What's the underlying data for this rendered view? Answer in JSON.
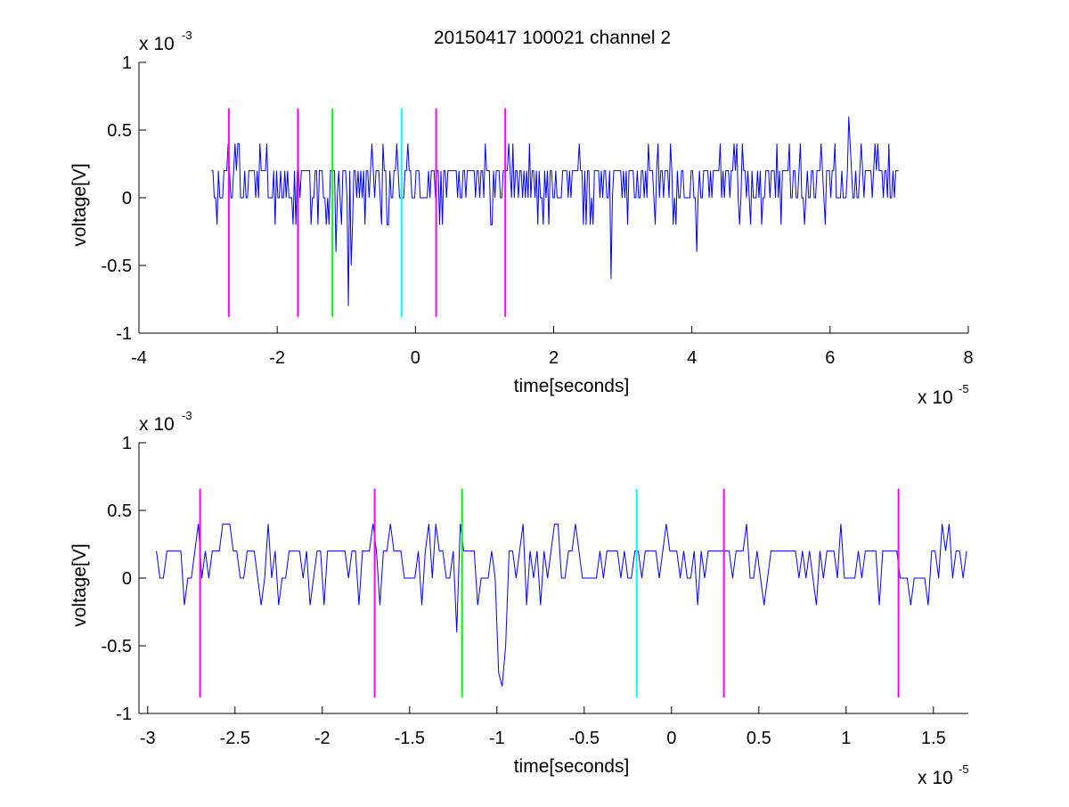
{
  "figure_title": "20150417 100021 channel 2",
  "colors": {
    "signal": "#0000ff",
    "marker_magenta": "#ff00ff",
    "marker_green": "#00ff00",
    "marker_cyan": "#00ffff",
    "axes": "#000000"
  },
  "chart_data": [
    {
      "type": "line",
      "title": "20150417 100021 channel 2",
      "xlabel": "time[seconds]",
      "ylabel": "voltage[V]",
      "x_exponent": "x 10",
      "x_exponent_power": "-5",
      "y_exponent": "x 10",
      "y_exponent_power": "-3",
      "xlim": [
        -4,
        8
      ],
      "ylim": [
        -1,
        1
      ],
      "xticks": [
        -4,
        -2,
        0,
        2,
        4,
        6,
        8
      ],
      "xtick_labels": [
        "-4",
        "-2",
        "0",
        "2",
        "4",
        "6",
        "8"
      ],
      "yticks": [
        -1,
        -0.5,
        0,
        0.5,
        1
      ],
      "ytick_labels": [
        "-1",
        "-0.5",
        "0",
        "0.5",
        "1"
      ],
      "grid": false,
      "units_note": "x in units of 1e-5 s, y in units of 1e-3 V",
      "signal": {
        "x_start": -2.95,
        "x_end": 7.0,
        "step": 0.02,
        "levels": [
          -0.2,
          0,
          0.2,
          0.4
        ],
        "spikes": [
          [
            -1.15,
            -0.4
          ],
          [
            -0.97,
            -0.8
          ],
          [
            -0.92,
            -0.5
          ],
          [
            2.83,
            -0.6
          ],
          [
            4.07,
            -0.4
          ],
          [
            6.27,
            0.6
          ]
        ]
      },
      "markers": [
        {
          "x": -2.7,
          "color": "magenta",
          "y_range": [
            -0.88,
            0.66
          ]
        },
        {
          "x": -1.7,
          "color": "magenta",
          "y_range": [
            -0.88,
            0.66
          ]
        },
        {
          "x": -1.2,
          "color": "green",
          "y_range": [
            -0.88,
            0.66
          ]
        },
        {
          "x": -0.2,
          "color": "cyan",
          "y_range": [
            -0.88,
            0.66
          ]
        },
        {
          "x": 0.3,
          "color": "magenta",
          "y_range": [
            -0.88,
            0.66
          ]
        },
        {
          "x": 1.3,
          "color": "magenta",
          "y_range": [
            -0.88,
            0.66
          ]
        }
      ]
    },
    {
      "type": "line",
      "title": "",
      "xlabel": "time[seconds]",
      "ylabel": "voltage[V]",
      "x_exponent": "x 10",
      "x_exponent_power": "-5",
      "y_exponent": "x 10",
      "y_exponent_power": "-3",
      "xlim": [
        -3.05,
        1.7
      ],
      "ylim": [
        -1,
        1
      ],
      "xticks": [
        -3,
        -2.5,
        -2,
        -1.5,
        -1,
        -0.5,
        0,
        0.5,
        1,
        1.5
      ],
      "xtick_labels": [
        "-3",
        "-2.5",
        "-2",
        "-1.5",
        "-1",
        "-0.5",
        "0",
        "0.5",
        "1",
        "1.5"
      ],
      "yticks": [
        -1,
        -0.5,
        0,
        0.5,
        1
      ],
      "ytick_labels": [
        "-1",
        "-0.5",
        "0",
        "0.5",
        "1"
      ],
      "grid": false,
      "units_note": "x in units of 1e-5 s, y in units of 1e-3 V",
      "signal": {
        "x_start": -2.95,
        "x_end": 1.7,
        "step": 0.02,
        "levels": [
          -0.2,
          0,
          0.2,
          0.4
        ],
        "spikes": [
          [
            -1.22,
            -0.4
          ],
          [
            -0.99,
            -0.7
          ],
          [
            -0.97,
            -0.8
          ],
          [
            -0.95,
            -0.5
          ],
          [
            -2.7,
            0.4
          ],
          [
            -1.7,
            0.4
          ],
          [
            -1.2,
            0.4
          ],
          [
            1.6,
            0.4
          ]
        ]
      },
      "markers": [
        {
          "x": -2.7,
          "color": "magenta",
          "y_range": [
            -0.88,
            0.66
          ]
        },
        {
          "x": -1.7,
          "color": "magenta",
          "y_range": [
            -0.88,
            0.66
          ]
        },
        {
          "x": -1.2,
          "color": "green",
          "y_range": [
            -0.88,
            0.66
          ]
        },
        {
          "x": -0.2,
          "color": "cyan",
          "y_range": [
            -0.88,
            0.66
          ]
        },
        {
          "x": 0.3,
          "color": "magenta",
          "y_range": [
            -0.88,
            0.66
          ]
        },
        {
          "x": 1.3,
          "color": "magenta",
          "y_range": [
            -0.88,
            0.66
          ]
        }
      ]
    }
  ]
}
